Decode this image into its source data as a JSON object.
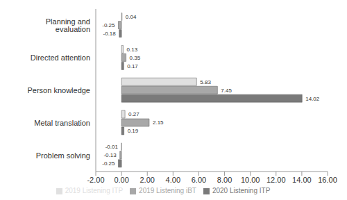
{
  "chart_data": {
    "type": "bar",
    "orientation": "horizontal",
    "categories": [
      "Planning and evaluation",
      "Directed attention",
      "Person knowledge",
      "Metal translation",
      "Problem solving"
    ],
    "series": [
      {
        "name": "2019 Listening ITP",
        "color": "#e0e0e0",
        "values": [
          0.04,
          0.13,
          5.83,
          0.27,
          -0.01
        ]
      },
      {
        "name": "2019 Listening iBT",
        "color": "#a8a8a8",
        "values": [
          -0.25,
          0.35,
          7.45,
          2.15,
          -0.13
        ]
      },
      {
        "name": "2020 Listening ITP",
        "color": "#7a7a7a",
        "values": [
          -0.18,
          0.17,
          14.02,
          0.19,
          -0.25
        ]
      }
    ],
    "xlim": [
      -2,
      16
    ],
    "xticks": [
      {
        "value": -2,
        "label": "-2.00"
      },
      {
        "value": 0,
        "label": "0.00"
      },
      {
        "value": 2,
        "label": "2.00"
      },
      {
        "value": 4,
        "label": "4.00"
      },
      {
        "value": 6,
        "label": "6.00"
      },
      {
        "value": 8,
        "label": "8.00"
      },
      {
        "value": 10,
        "label": "10.00"
      },
      {
        "value": 12,
        "label": "12.00"
      },
      {
        "value": 14,
        "label": "14.00"
      },
      {
        "value": 16,
        "label": "16.00"
      }
    ],
    "grid": false,
    "legend": "bottom",
    "data_labels": true
  }
}
